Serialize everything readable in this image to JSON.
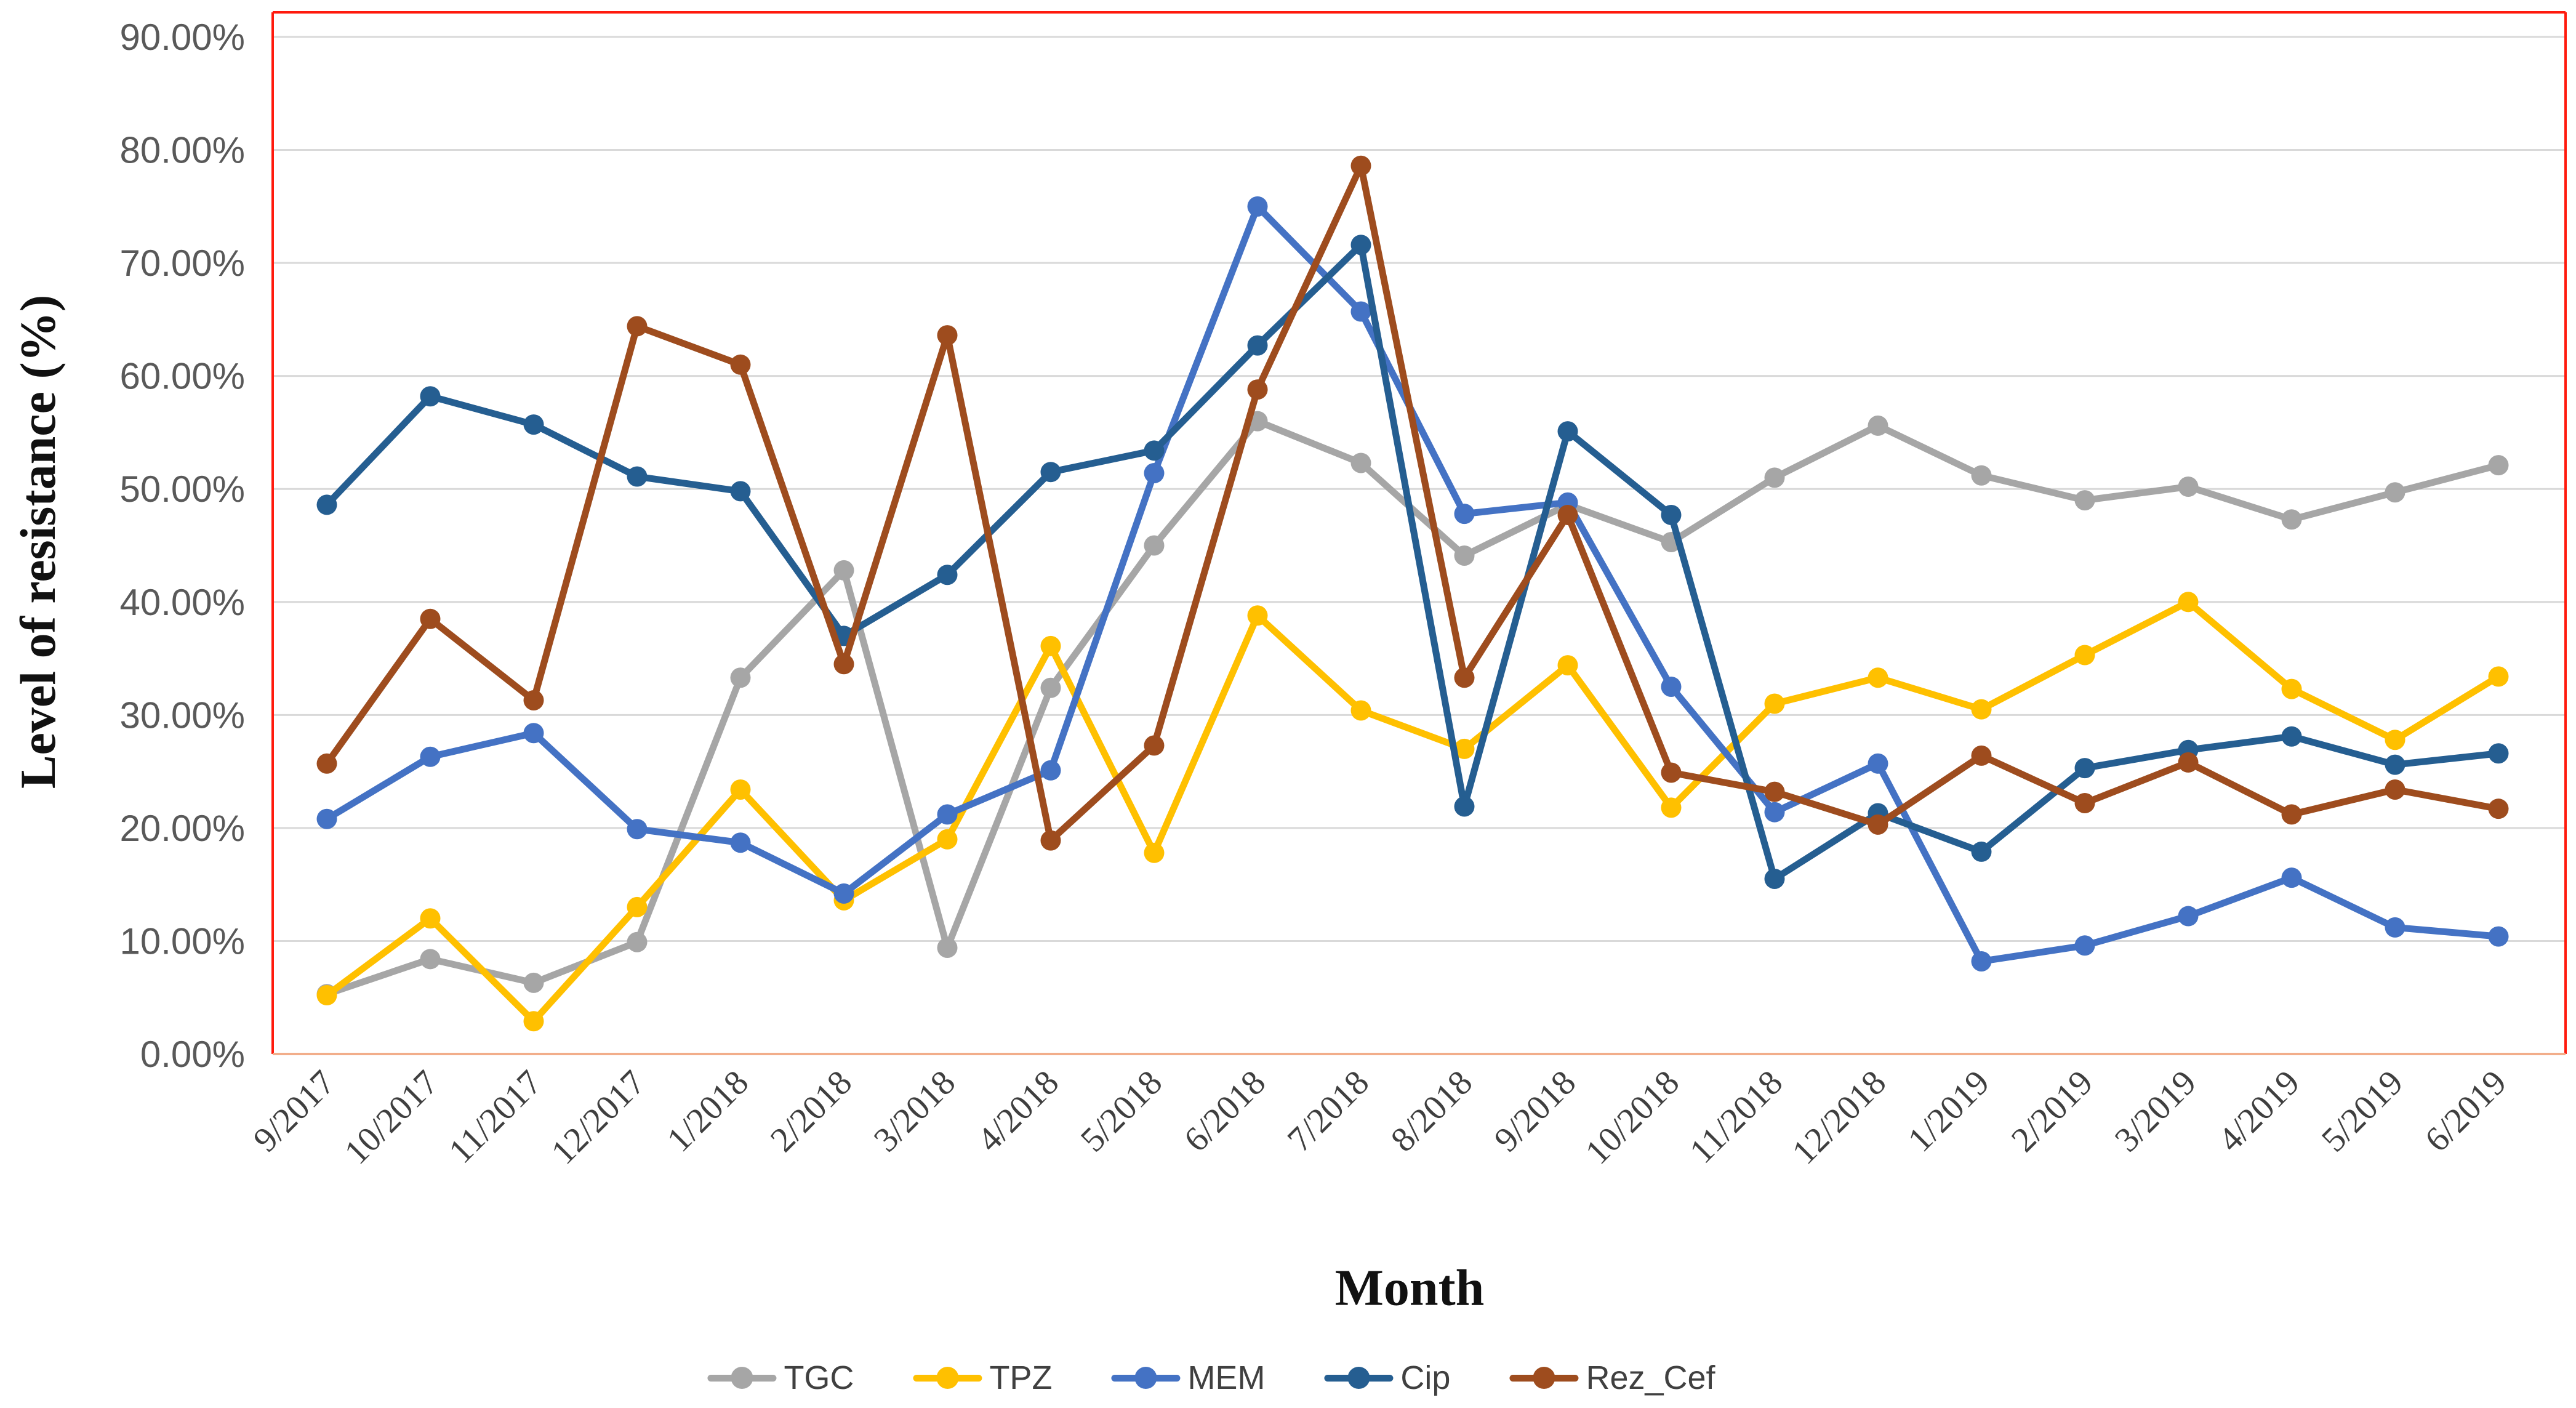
{
  "figure": {
    "y_axis_title": "Level of resistance (%)",
    "x_axis_title": "Month"
  },
  "chart_data": {
    "type": "line",
    "title": "",
    "xlabel": "Month",
    "ylabel": "Level of resistance (%)",
    "ylim": [
      0,
      90
    ],
    "ytick_step": 10,
    "ytick_labels": [
      "0.00%",
      "10.00%",
      "20.00%",
      "30.00%",
      "40.00%",
      "50.00%",
      "60.00%",
      "70.00%",
      "80.00%",
      "90.00%"
    ],
    "grid": true,
    "legend_position": "bottom",
    "categories": [
      "9/2017",
      "10/2017",
      "11/2017",
      "12/2017",
      "1/2018",
      "2/2018",
      "3/2018",
      "4/2018",
      "5/2018",
      "6/2018",
      "7/2018",
      "8/2018",
      "9/2018",
      "10/2018",
      "11/2018",
      "12/2018",
      "1/2019",
      "2/2019",
      "3/2019",
      "4/2019",
      "5/2019",
      "6/2019"
    ],
    "series": [
      {
        "name": "TGC",
        "color": "#A6A6A6",
        "values": [
          5.3,
          8.4,
          6.3,
          9.9,
          33.3,
          42.8,
          9.4,
          32.4,
          45.0,
          56.0,
          52.3,
          44.1,
          48.6,
          45.3,
          51.0,
          55.6,
          51.2,
          49.0,
          50.2,
          47.3,
          49.7,
          52.1
        ]
      },
      {
        "name": "TPZ",
        "color": "#FFC000",
        "values": [
          5.2,
          12.0,
          2.9,
          13.0,
          23.4,
          13.6,
          19.0,
          36.1,
          17.8,
          38.8,
          30.4,
          27.0,
          34.4,
          21.8,
          31.0,
          33.3,
          30.5,
          35.3,
          40.0,
          32.3,
          27.8,
          33.4
        ]
      },
      {
        "name": "MEM",
        "color": "#4472C4",
        "values": [
          20.8,
          26.3,
          28.4,
          19.9,
          18.7,
          14.2,
          21.2,
          25.1,
          51.4,
          75.0,
          65.7,
          47.8,
          48.8,
          32.5,
          21.4,
          25.7,
          8.2,
          9.6,
          12.2,
          15.6,
          11.2,
          10.4
        ]
      },
      {
        "name": "Cip",
        "color": "#255E91",
        "values": [
          48.6,
          58.2,
          55.7,
          51.1,
          49.8,
          37.0,
          42.4,
          51.5,
          53.4,
          62.7,
          71.6,
          21.9,
          55.1,
          47.7,
          15.5,
          21.3,
          17.9,
          25.3,
          26.9,
          28.1,
          25.6,
          26.6
        ]
      },
      {
        "name": "Rez_Cef",
        "color": "#9E4C1E",
        "values": [
          25.7,
          38.5,
          31.3,
          64.4,
          61.0,
          34.5,
          63.6,
          18.9,
          27.3,
          58.8,
          78.6,
          33.3,
          47.7,
          24.9,
          23.2,
          20.3,
          26.4,
          22.2,
          25.8,
          21.2,
          23.4,
          21.7
        ]
      }
    ],
    "style": {
      "plot_border_color": "#FF1A0D",
      "plot_bottom_axis_color": "#F2AE8B",
      "gridline_color": "#D9D9D9",
      "ytick_label_color": "#595959",
      "xtick_label_color": "#3F3F3F"
    }
  }
}
